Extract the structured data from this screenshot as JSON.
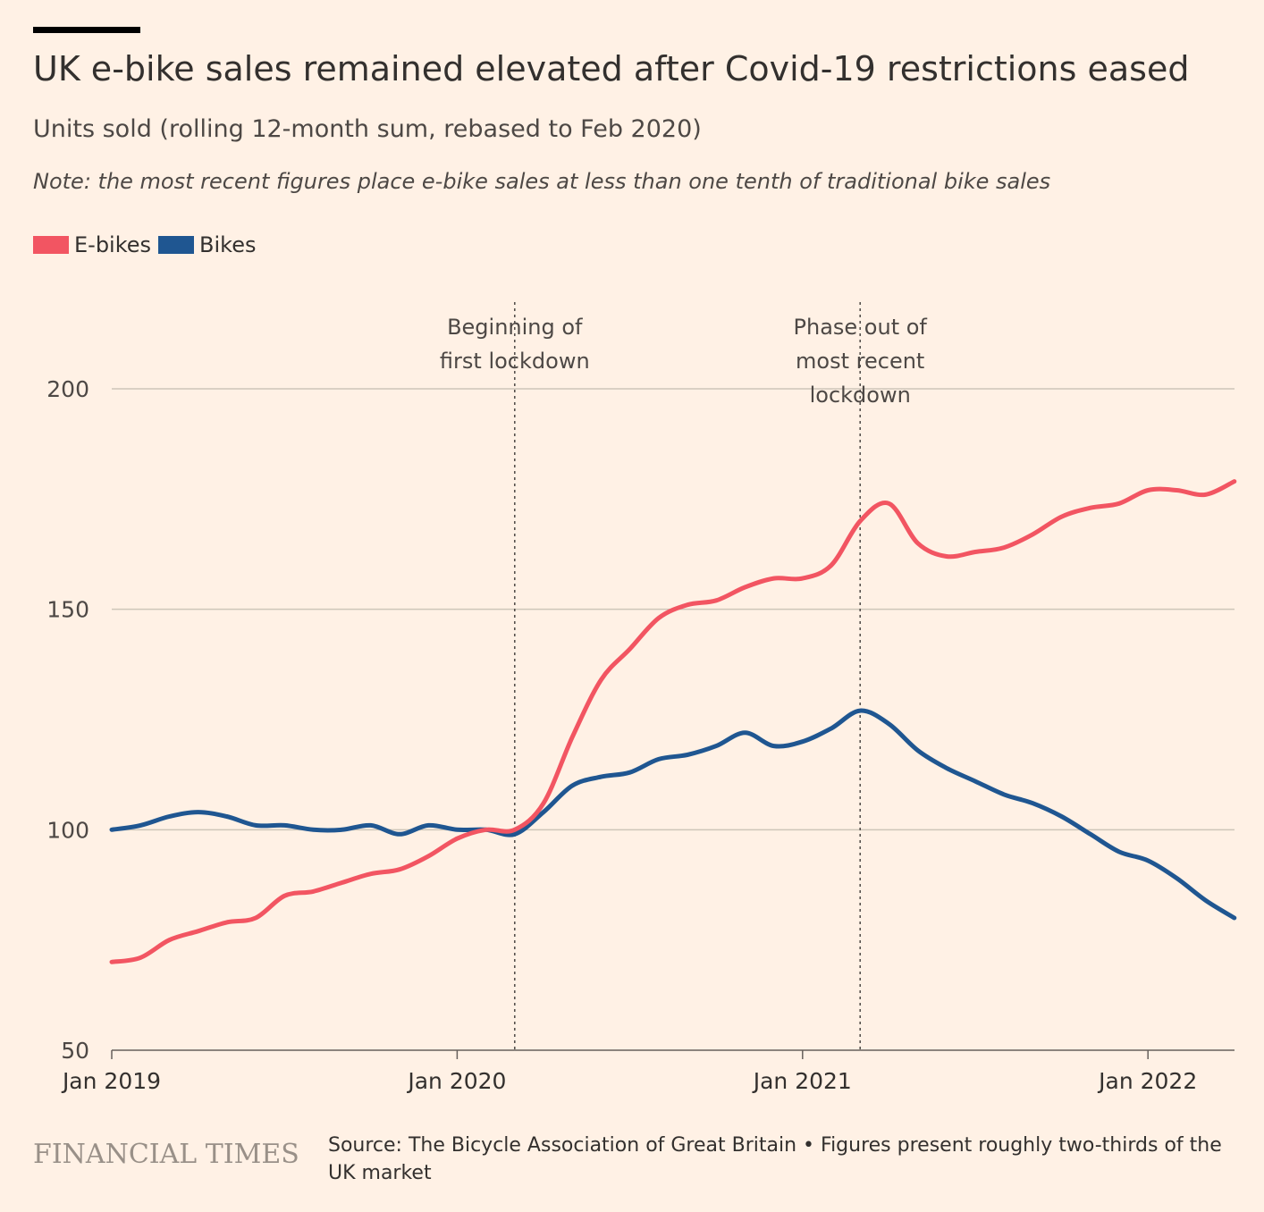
{
  "chart_data": {
    "type": "line",
    "title": "UK e-bike sales remained elevated after Covid-19 restrictions eased",
    "subtitle": "Units sold (rolling 12-month sum, rebased to Feb 2020)",
    "note": "Note: the most recent figures place e-bike sales at less than one tenth of traditional bike sales",
    "ylim": [
      50,
      200
    ],
    "yticks": [
      50,
      100,
      150,
      200
    ],
    "xlim": [
      "2019-01",
      "2022-04"
    ],
    "xticks": [
      {
        "value": "2019-01",
        "label": "Jan 2019"
      },
      {
        "value": "2020-01",
        "label": "Jan 2020"
      },
      {
        "value": "2021-01",
        "label": "Jan 2021"
      },
      {
        "value": "2022-01",
        "label": "Jan 2022"
      }
    ],
    "grid": true,
    "legend_position": "top-left",
    "x": [
      "2019-01",
      "2019-02",
      "2019-03",
      "2019-04",
      "2019-05",
      "2019-06",
      "2019-07",
      "2019-08",
      "2019-09",
      "2019-10",
      "2019-11",
      "2019-12",
      "2020-01",
      "2020-02",
      "2020-03",
      "2020-04",
      "2020-05",
      "2020-06",
      "2020-07",
      "2020-08",
      "2020-09",
      "2020-10",
      "2020-11",
      "2020-12",
      "2021-01",
      "2021-02",
      "2021-03",
      "2021-04",
      "2021-05",
      "2021-06",
      "2021-07",
      "2021-08",
      "2021-09",
      "2021-10",
      "2021-11",
      "2021-12",
      "2022-01",
      "2022-02",
      "2022-03",
      "2022-04"
    ],
    "series": [
      {
        "name": "E-bikes",
        "color": "#F25562",
        "values": [
          70,
          71,
          75,
          77,
          79,
          80,
          85,
          86,
          88,
          90,
          91,
          94,
          98,
          100,
          100,
          106,
          121,
          134,
          141,
          148,
          151,
          152,
          155,
          157,
          157,
          160,
          170,
          174,
          165,
          162,
          163,
          164,
          167,
          171,
          173,
          174,
          177,
          177,
          176,
          179
        ]
      },
      {
        "name": "Bikes",
        "color": "#1F5691",
        "values": [
          100,
          101,
          103,
          104,
          103,
          101,
          101,
          100,
          100,
          101,
          99,
          101,
          100,
          100,
          99,
          104,
          110,
          112,
          113,
          116,
          117,
          119,
          122,
          119,
          120,
          123,
          127,
          124,
          118,
          114,
          111,
          108,
          106,
          103,
          99,
          95,
          93,
          89,
          84,
          80
        ]
      }
    ],
    "annotations": [
      {
        "x": "2020-03",
        "lines": [
          "Beginning of",
          "first lockdown"
        ]
      },
      {
        "x": "2021-03",
        "lines": [
          "Phase out of",
          "most recent",
          "lockdown"
        ]
      }
    ]
  },
  "footer": {
    "logo": "FINANCIAL TIMES",
    "source": "Source: The Bicycle Association of Great Britain • Figures present roughly two-thirds of the UK market"
  }
}
